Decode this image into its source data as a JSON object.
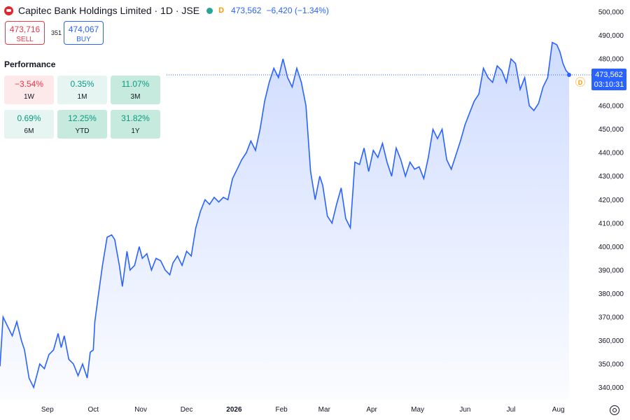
{
  "header": {
    "symbol_title": "Capitec Bank Holdings Limited · 1D · JSE",
    "d_label": "D",
    "price": "473,562",
    "change": "−6,420 (−1.34%)"
  },
  "trade": {
    "sell_price": "473,716",
    "sell_label": "SELL",
    "spread": "351",
    "buy_price": "474,067",
    "buy_label": "BUY"
  },
  "performance": {
    "title": "Performance",
    "items": [
      {
        "value": "−3.54%",
        "period": "1W"
      },
      {
        "value": "0.35%",
        "period": "1M"
      },
      {
        "value": "11.07%",
        "period": "3M"
      },
      {
        "value": "0.69%",
        "period": "6M"
      },
      {
        "value": "12.25%",
        "period": "YTD"
      },
      {
        "value": "31.82%",
        "period": "1Y"
      }
    ]
  },
  "price_tag": {
    "price": "473,562",
    "countdown": "03:10:31",
    "marker": "D"
  },
  "colors": {
    "line": "#2962ff",
    "negative": "#f23645",
    "positive": "#089981"
  },
  "chart_data": {
    "type": "area",
    "y_ticks": [
      "340,000",
      "350,000",
      "360,000",
      "370,000",
      "380,000",
      "390,000",
      "400,000",
      "410,000",
      "420,000",
      "430,000",
      "440,000",
      "450,000",
      "460,000",
      "470,000",
      "480,000",
      "490,000",
      "500,000"
    ],
    "x_ticks": [
      "Sep",
      "Oct",
      "Nov",
      "Dec",
      "2026",
      "Feb",
      "Mar",
      "Apr",
      "May",
      "Jun",
      "Jul",
      "Aug"
    ],
    "ylim": [
      334000,
      505000
    ],
    "last_price": 473562,
    "series": [
      {
        "x": [
          "2025-08-01",
          "2025-08-03",
          "2025-08-06",
          "2025-08-09",
          "2025-08-12",
          "2025-08-15",
          "2025-08-17",
          "2025-08-20",
          "2025-08-23",
          "2025-08-27",
          "2025-08-30",
          "2025-09-02",
          "2025-09-05",
          "2025-09-08",
          "2025-09-10",
          "2025-09-12",
          "2025-09-15",
          "2025-09-18",
          "2025-09-21",
          "2025-09-24",
          "2025-09-27",
          "2025-09-29",
          "2025-10-01",
          "2025-10-02",
          "2025-10-04",
          "2025-10-07",
          "2025-10-10",
          "2025-10-13",
          "2025-10-15",
          "2025-10-18",
          "2025-10-20",
          "2025-10-23",
          "2025-10-25",
          "2025-10-28",
          "2025-10-31",
          "2025-11-02",
          "2025-11-05",
          "2025-11-08",
          "2025-11-11",
          "2025-11-14",
          "2025-11-17",
          "2025-11-20",
          "2025-11-22",
          "2025-11-25",
          "2025-11-28",
          "2025-12-01",
          "2025-12-04",
          "2025-12-07",
          "2025-12-10",
          "2025-12-13",
          "2025-12-16",
          "2025-12-19",
          "2025-12-22",
          "2025-12-25",
          "2025-12-28",
          "2025-12-31",
          "2026-01-03",
          "2026-01-06",
          "2026-01-09",
          "2026-01-12",
          "2026-01-15",
          "2026-01-18",
          "2026-01-21",
          "2026-01-24",
          "2026-01-27",
          "2026-01-30",
          "2026-02-02",
          "2026-02-05",
          "2026-02-08",
          "2026-02-11",
          "2026-02-14",
          "2026-02-17",
          "2026-02-20",
          "2026-02-23",
          "2026-02-26",
          "2026-02-28",
          "2026-03-03",
          "2026-03-06",
          "2026-03-09",
          "2026-03-12",
          "2026-03-15",
          "2026-03-18",
          "2026-03-21",
          "2026-03-24",
          "2026-03-27",
          "2026-03-30",
          "2026-04-02",
          "2026-04-05",
          "2026-04-08",
          "2026-04-11",
          "2026-04-14",
          "2026-04-17",
          "2026-04-20",
          "2026-04-23",
          "2026-04-26",
          "2026-04-29",
          "2026-05-02",
          "2026-05-05",
          "2026-05-08",
          "2026-05-11",
          "2026-05-14",
          "2026-05-17",
          "2026-05-20",
          "2026-05-23",
          "2026-05-26",
          "2026-05-29",
          "2026-06-01",
          "2026-06-04",
          "2026-06-07",
          "2026-06-10",
          "2026-06-13",
          "2026-06-16",
          "2026-06-19",
          "2026-06-22",
          "2026-06-25",
          "2026-06-28",
          "2026-07-01",
          "2026-07-04",
          "2026-07-07",
          "2026-07-10",
          "2026-07-13",
          "2026-07-16",
          "2026-07-19",
          "2026-07-22",
          "2026-07-25",
          "2026-07-28",
          "2026-07-31",
          "2026-08-02",
          "2026-08-04",
          "2026-08-06",
          "2026-08-08"
        ],
        "y": [
          349000,
          370000,
          366000,
          362000,
          368000,
          360000,
          356000,
          344000,
          340000,
          350000,
          348000,
          354000,
          356000,
          363000,
          357000,
          362000,
          352000,
          350000,
          345000,
          350000,
          344000,
          355000,
          356000,
          368000,
          378000,
          392000,
          404000,
          405000,
          403000,
          392000,
          383000,
          398000,
          390000,
          392000,
          400000,
          395000,
          397000,
          390000,
          395000,
          394000,
          390000,
          388000,
          393000,
          396000,
          392000,
          398000,
          396000,
          408000,
          415000,
          420000,
          418000,
          421000,
          419000,
          421000,
          420000,
          429000,
          433000,
          437000,
          440000,
          445000,
          441000,
          450000,
          462000,
          470000,
          476000,
          472000,
          480000,
          472000,
          468000,
          476000,
          470000,
          460000,
          432000,
          420000,
          430000,
          426000,
          413000,
          410000,
          418000,
          425000,
          412000,
          408000,
          436000,
          435000,
          442000,
          432000,
          441000,
          438000,
          444000,
          436000,
          430000,
          442000,
          437000,
          430000,
          436000,
          433000,
          434000,
          429000,
          438000,
          450000,
          446000,
          450000,
          437000,
          433000,
          439000,
          445000,
          452000,
          457000,
          462000,
          465000,
          476000,
          472000,
          470000,
          477000,
          475000,
          470000,
          480000,
          478000,
          467000,
          472000,
          460000,
          458000,
          461000,
          468000,
          472000,
          487000,
          486000,
          483000,
          478000,
          475000,
          473562
        ]
      }
    ]
  }
}
